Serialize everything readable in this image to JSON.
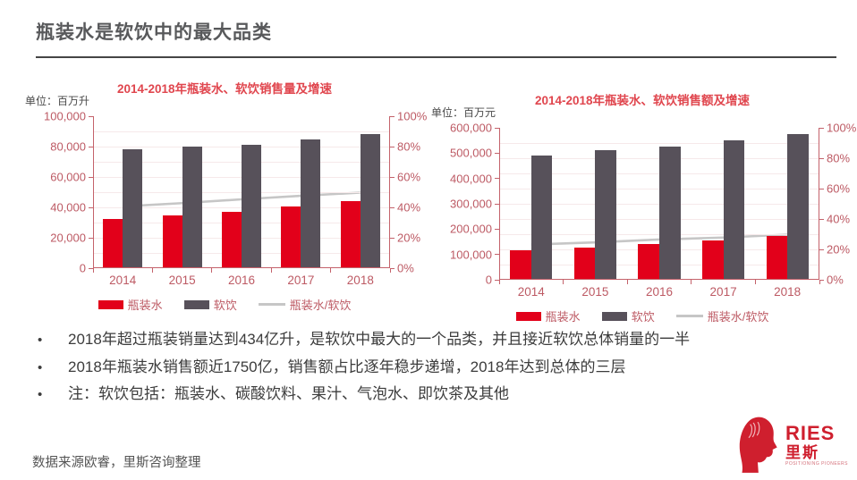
{
  "slide": {
    "title": "瓶装水是软饮中的最大品类",
    "bullets": [
      "2018年超过瓶装销量达到434亿升，是软饮中最大的一个品类，并且接近软饮总体销量的一半",
      "2018年瓶装水销售额近1750亿，销售额占比逐年稳步递增，2018年达到总体的三层",
      "注：软饮包括：瓶装水、碳酸饮料、果汁、气泡水、即饮茶及其他"
    ],
    "source": "数据来源欧睿，里斯咨询整理",
    "logo": {
      "brand_en": "RIES",
      "brand_cn": "里斯",
      "tagline": "POSITIONING PIONEERS"
    }
  },
  "colors": {
    "bar_red": "#e2001a",
    "bar_dark": "#57515a",
    "line_gray": "#c6c6c6",
    "chart_title_red": "#e0464e",
    "axis_rose": "#bd5a64",
    "logo_red": "#cf1f2e"
  },
  "chart_data": [
    {
      "type": "bar",
      "title": "2014-2018年瓶装水、软饮销售量及增速",
      "unit_label": "单位：百万升",
      "categories": [
        "2014",
        "2015",
        "2016",
        "2017",
        "2018"
      ],
      "series": [
        {
          "name": "瓶装水",
          "kind": "bar",
          "color": "#e2001a",
          "axis": "left",
          "values": [
            31500,
            34000,
            36500,
            40000,
            43400
          ]
        },
        {
          "name": "软饮",
          "kind": "bar",
          "color": "#57515a",
          "axis": "left",
          "values": [
            77500,
            79500,
            80500,
            84000,
            87500
          ]
        },
        {
          "name": "瓶装水/软饮",
          "kind": "line",
          "color": "#c6c6c6",
          "axis": "right",
          "values": [
            40.6,
            42.8,
            45.3,
            47.6,
            49.7
          ]
        }
      ],
      "left_axis": {
        "min": 0,
        "max": 100000,
        "ticks": [
          "100,000",
          "80,000",
          "60,000",
          "40,000",
          "20,000",
          "0"
        ]
      },
      "right_axis": {
        "min": 0,
        "max": 100,
        "ticks": [
          "100%",
          "80%",
          "60%",
          "40%",
          "20%",
          "0%"
        ]
      },
      "grid": true,
      "legend_position": "bottom"
    },
    {
      "type": "bar",
      "title": "2014-2018年瓶装水、软饮销售额及增速",
      "unit_label": "单位：百万元",
      "categories": [
        "2014",
        "2015",
        "2016",
        "2017",
        "2018"
      ],
      "series": [
        {
          "name": "瓶装水",
          "kind": "bar",
          "color": "#e2001a",
          "axis": "left",
          "values": [
            113000,
            125000,
            138000,
            152000,
            170000
          ]
        },
        {
          "name": "软饮",
          "kind": "bar",
          "color": "#57515a",
          "axis": "left",
          "values": [
            487000,
            509000,
            521000,
            547000,
            572000
          ]
        },
        {
          "name": "瓶装水/软饮",
          "kind": "line",
          "color": "#c6c6c6",
          "axis": "right",
          "values": [
            23.2,
            24.6,
            26.5,
            27.8,
            29.7
          ]
        }
      ],
      "left_axis": {
        "min": 0,
        "max": 600000,
        "ticks": [
          "600,000",
          "500,000",
          "400,000",
          "300,000",
          "200,000",
          "100,000",
          "0"
        ]
      },
      "right_axis": {
        "min": 0,
        "max": 100,
        "ticks": [
          "100%",
          "80%",
          "60%",
          "40%",
          "20%",
          "0%"
        ]
      },
      "grid": true,
      "legend_position": "bottom"
    }
  ]
}
